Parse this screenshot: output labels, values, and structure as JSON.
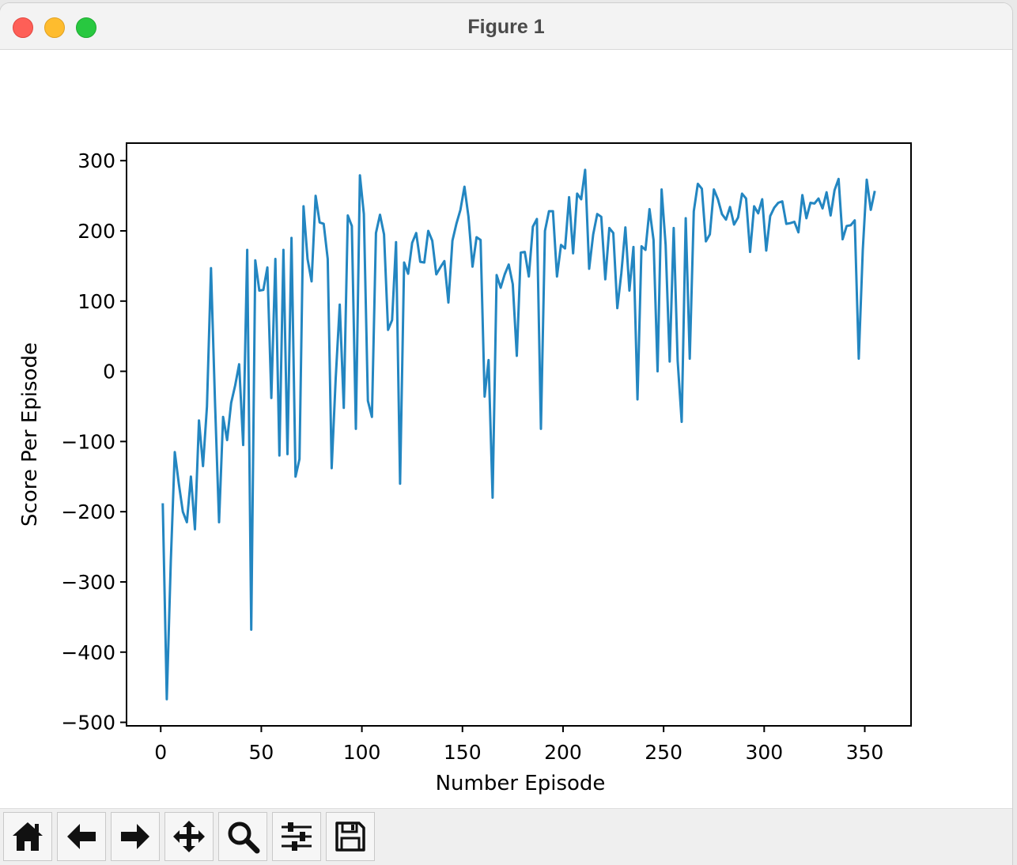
{
  "window": {
    "title": "Figure 1"
  },
  "toolbar": {
    "items": [
      {
        "name": "home-button",
        "icon": "home-icon"
      },
      {
        "name": "back-button",
        "icon": "arrow-left-icon"
      },
      {
        "name": "forward-button",
        "icon": "arrow-right-icon"
      },
      {
        "name": "pan-button",
        "icon": "move-icon"
      },
      {
        "name": "zoom-button",
        "icon": "search-icon"
      },
      {
        "name": "configure-subplots-button",
        "icon": "sliders-icon"
      },
      {
        "name": "save-button",
        "icon": "save-icon"
      }
    ]
  },
  "chart_data": {
    "type": "line",
    "title": "",
    "xlabel": "Number Episode",
    "ylabel": "Score Per Episode",
    "xlim": [
      -17,
      373
    ],
    "ylim": [
      -505,
      325
    ],
    "xticks": [
      0,
      50,
      100,
      150,
      200,
      250,
      300,
      350
    ],
    "yticks": [
      -500,
      -400,
      -300,
      -200,
      -100,
      0,
      100,
      200,
      300
    ],
    "grid": false,
    "color": "#2386c1",
    "series": [
      {
        "name": "",
        "x": [
          1,
          3,
          5,
          7,
          9,
          11,
          13,
          15,
          17,
          19,
          21,
          23,
          25,
          27,
          29,
          31,
          33,
          35,
          37,
          39,
          41,
          43,
          45,
          47,
          49,
          51,
          53,
          55,
          57,
          59,
          61,
          63,
          65,
          67,
          69,
          71,
          73,
          75,
          77,
          79,
          81,
          83,
          85,
          87,
          89,
          91,
          93,
          95,
          97,
          99,
          101,
          103,
          105,
          107,
          109,
          111,
          113,
          115,
          117,
          119,
          121,
          123,
          125,
          127,
          129,
          131,
          133,
          135,
          137,
          139,
          141,
          143,
          145,
          147,
          149,
          151,
          153,
          155,
          157,
          159,
          161,
          163,
          165,
          167,
          169,
          171,
          173,
          175,
          177,
          179,
          181,
          183,
          185,
          187,
          189,
          191,
          193,
          195,
          197,
          199,
          201,
          203,
          205,
          207,
          209,
          211,
          213,
          215,
          217,
          219,
          221,
          223,
          225,
          227,
          229,
          231,
          233,
          235,
          237,
          239,
          241,
          243,
          245,
          247,
          249,
          251,
          253,
          255,
          257,
          259,
          261,
          263,
          265,
          267,
          269,
          271,
          273,
          275,
          277,
          279,
          281,
          283,
          285,
          287,
          289,
          291,
          293,
          295,
          297,
          299,
          301,
          303,
          305,
          307,
          309,
          311,
          313,
          315,
          317,
          319,
          321,
          323,
          325,
          327,
          329,
          331,
          333,
          335,
          337,
          339,
          341,
          343,
          345,
          347,
          349,
          351,
          353,
          355
        ],
        "y": [
          -188,
          -467,
          -270,
          -115,
          -160,
          -200,
          -215,
          -150,
          -225,
          -70,
          -135,
          -50,
          147,
          -45,
          -215,
          -65,
          -98,
          -45,
          -20,
          10,
          -105,
          173,
          -368,
          158,
          115,
          116,
          148,
          -38,
          160,
          -120,
          173,
          -118,
          190,
          -150,
          -125,
          235,
          160,
          128,
          250,
          212,
          210,
          160,
          -138,
          -10,
          95,
          -52,
          222,
          207,
          -82,
          279,
          224,
          -42,
          -65,
          197,
          223,
          195,
          59,
          73,
          184,
          -160,
          155,
          139,
          183,
          197,
          156,
          155,
          200,
          186,
          138,
          148,
          157,
          98,
          186,
          210,
          230,
          263,
          220,
          149,
          191,
          187,
          -36,
          16,
          -180,
          137,
          119,
          138,
          152,
          124,
          22,
          169,
          170,
          135,
          206,
          217,
          -82,
          200,
          228,
          228,
          135,
          180,
          175,
          248,
          168,
          253,
          245,
          287,
          146,
          195,
          224,
          220,
          131,
          204,
          197,
          90,
          140,
          205,
          115,
          177,
          -40,
          178,
          173,
          231,
          187,
          0,
          259,
          180,
          14,
          204,
          15,
          -72,
          218,
          18,
          228,
          267,
          260,
          185,
          195,
          259,
          245,
          224,
          216,
          234,
          209,
          219,
          253,
          246,
          170,
          235,
          225,
          245,
          172,
          221,
          233,
          240,
          242,
          210,
          211,
          213,
          198,
          251,
          218,
          240,
          239,
          246,
          232,
          255,
          222,
          258,
          274,
          188,
          207,
          208,
          215,
          18,
          173,
          273,
          230,
          257
        ]
      }
    ]
  }
}
